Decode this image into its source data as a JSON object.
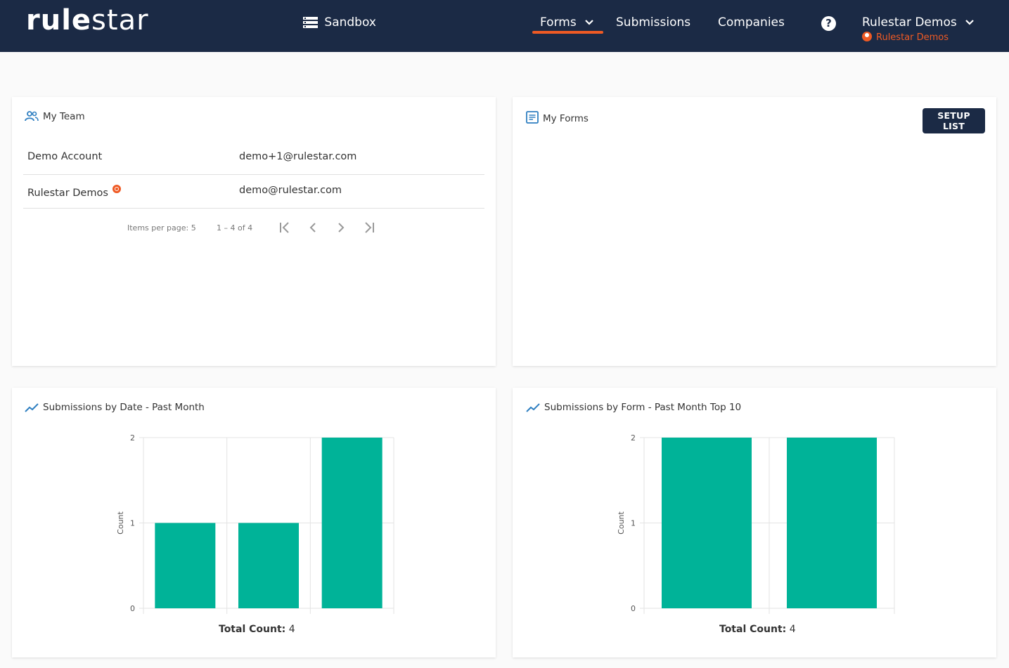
{
  "app": {
    "logo_bold": "rule",
    "logo_light": "star",
    "environment": "Sandbox"
  },
  "nav": {
    "forms": "Forms",
    "submissions": "Submissions",
    "companies": "Companies",
    "help": "?",
    "user_name": "Rulestar Demos",
    "user_company": "Rulestar Demos"
  },
  "team": {
    "title": "My Team",
    "members": [
      {
        "name": "Demo Account",
        "email": "demo+1@rulestar.com"
      },
      {
        "name": "Rulestar Demos",
        "email": "demo@rulestar.com"
      }
    ],
    "items_per_page": "Items per page: 5",
    "range": "1 – 4 of 4"
  },
  "forms": {
    "title": "My Forms",
    "setup_button": "SETUP LIST"
  },
  "colors": {
    "nav_bg": "#1b2a45",
    "accent": "#ef5a24",
    "bar": "#00b398"
  },
  "charts": [
    {
      "title": "Submissions by Date - Past Month",
      "total_label": "Total Count:",
      "total_value": "4"
    },
    {
      "title": "Submissions by Form - Past Month Top 10",
      "total_label": "Total Count:",
      "total_value": "4"
    }
  ],
  "chart_data": [
    {
      "type": "bar",
      "categories": [
        "",
        "",
        ""
      ],
      "values": [
        1,
        1,
        2
      ],
      "ylabel": "Count",
      "yticks": [
        "0",
        "1",
        "2"
      ],
      "ylim": [
        0,
        2
      ],
      "grid": true
    },
    {
      "type": "bar",
      "categories": [
        "",
        ""
      ],
      "values": [
        2,
        2
      ],
      "ylabel": "Count",
      "yticks": [
        "0",
        "1",
        "2"
      ],
      "ylim": [
        0,
        2
      ],
      "grid": true
    }
  ]
}
